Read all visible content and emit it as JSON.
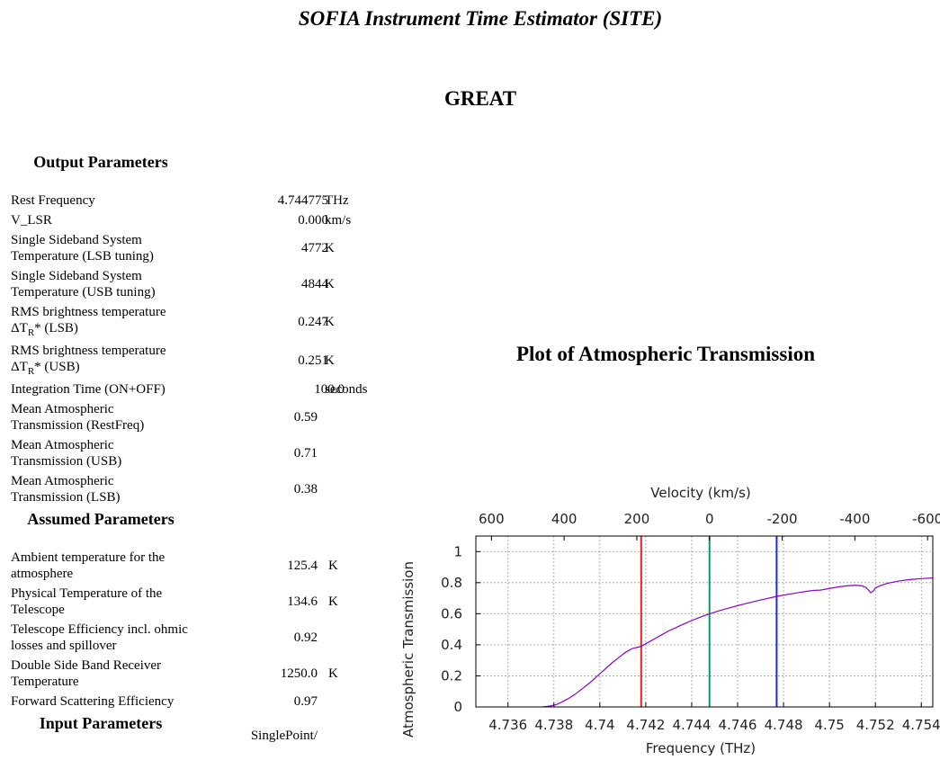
{
  "header": {
    "title": "SOFIA Instrument Time Estimator (SITE)",
    "instrument": "GREAT"
  },
  "output": {
    "heading": "Output Parameters",
    "rows": [
      {
        "label": "Rest Frequency",
        "value": "4.744775",
        "unit": "THz"
      },
      {
        "label": "V_LSR",
        "value": "0.000",
        "unit": "km/s"
      },
      {
        "label": "Single Sideband System Temperature (LSB tuning)",
        "value": "4772",
        "unit": "K"
      },
      {
        "label": "Single Sideband System Temperature (USB tuning)",
        "value": "4844",
        "unit": "K"
      },
      {
        "label_line1": "RMS brightness temperature",
        "label_pre": "ΔT",
        "label_sub": "R",
        "label_post": "* (LSB)",
        "value": "0.247",
        "unit": "K"
      },
      {
        "label_line1": "RMS brightness temperature",
        "label_pre": "ΔT",
        "label_sub": "R",
        "label_post": "* (USB)",
        "value": "0.251",
        "unit": "K"
      },
      {
        "label": "Integration Time (ON+OFF)",
        "value": "100.0",
        "unit": "seconds"
      },
      {
        "label": "Mean Atmospheric Transmission (RestFreq)",
        "value": "0.59",
        "unit": ""
      },
      {
        "label": "Mean Atmospheric Transmission (USB)",
        "value": "0.71",
        "unit": ""
      },
      {
        "label": "Mean Atmospheric Transmission (LSB)",
        "value": "0.38",
        "unit": ""
      }
    ]
  },
  "assumed": {
    "heading": "Assumed Parameters",
    "rows": [
      {
        "label": "Ambient temperature for the atmosphere",
        "value": "125.4",
        "unit": "K"
      },
      {
        "label": "Physical Temperature of the Telescope",
        "value": "134.6",
        "unit": "K"
      },
      {
        "label": "Telescope Efficiency incl. ohmic losses and spillover",
        "value": "0.92",
        "unit": ""
      },
      {
        "label": "Double Side Band Receiver Temperature",
        "value": "1250.0",
        "unit": "K"
      },
      {
        "label": "Forward Scattering Efficiency",
        "value": "0.97",
        "unit": ""
      }
    ]
  },
  "input": {
    "heading": "Input Parameters",
    "partial_value": "SinglePoint/"
  },
  "plot_heading": "Plot of Atmospheric Transmission",
  "chart_data": {
    "type": "line",
    "title": "",
    "xlabel": "Frequency (THz)",
    "ylabel": "Atmospheric Transmission",
    "x2label": "Velocity (km/s)",
    "xlim": [
      4.7346,
      4.7545
    ],
    "ylim": [
      0,
      1.1
    ],
    "x_ticks": [
      "4.736",
      "4.738",
      "4.74",
      "4.742",
      "4.744",
      "4.746",
      "4.748",
      "4.75",
      "4.752",
      "4.754"
    ],
    "y_ticks": [
      "0",
      "0.2",
      "0.4",
      "0.6",
      "0.8",
      "1"
    ],
    "x2_ticks": [
      "600",
      "400",
      "200",
      "0",
      "-200",
      "-400",
      "-600"
    ],
    "grid": true,
    "markers": [
      {
        "name": "LSB",
        "x": 4.7418,
        "color": "#e8231f"
      },
      {
        "name": "RestFreq",
        "x": 4.744775,
        "color": "#0a9a6a"
      },
      {
        "name": "USB",
        "x": 4.7477,
        "color": "#1b2bd8"
      }
    ],
    "series": [
      {
        "color": "#8a00c8",
        "x": [
          4.7375,
          4.7378,
          4.7381,
          4.7384,
          4.7387,
          4.739,
          4.7393,
          4.7396,
          4.7399,
          4.7402,
          4.7405,
          4.7408,
          4.7411,
          4.7414,
          4.7418,
          4.7421,
          4.7424,
          4.7427,
          4.743,
          4.7433,
          4.7436,
          4.7439,
          4.7442,
          4.7445,
          4.7448,
          4.7451,
          4.7454,
          4.7457,
          4.746,
          4.7463,
          4.7466,
          4.7469,
          4.7472,
          4.7475,
          4.7478,
          4.7481,
          4.7484,
          4.7487,
          4.749,
          4.7493,
          4.7496,
          4.7499,
          4.7502,
          4.7505,
          4.7508,
          4.7511,
          4.7514,
          4.7516,
          4.7517,
          4.7518,
          4.7519,
          4.752,
          4.7522,
          4.7525,
          4.753,
          4.7535,
          4.754,
          4.7545
        ],
        "y": [
          0.0,
          0.005,
          0.015,
          0.035,
          0.06,
          0.09,
          0.125,
          0.16,
          0.2,
          0.24,
          0.28,
          0.315,
          0.35,
          0.375,
          0.39,
          0.415,
          0.44,
          0.465,
          0.49,
          0.51,
          0.53,
          0.55,
          0.568,
          0.585,
          0.6,
          0.615,
          0.628,
          0.64,
          0.652,
          0.663,
          0.674,
          0.685,
          0.695,
          0.705,
          0.715,
          0.722,
          0.73,
          0.737,
          0.744,
          0.75,
          0.752,
          0.76,
          0.768,
          0.775,
          0.78,
          0.783,
          0.78,
          0.768,
          0.752,
          0.735,
          0.745,
          0.765,
          0.78,
          0.795,
          0.81,
          0.82,
          0.826,
          0.83
        ]
      }
    ]
  }
}
